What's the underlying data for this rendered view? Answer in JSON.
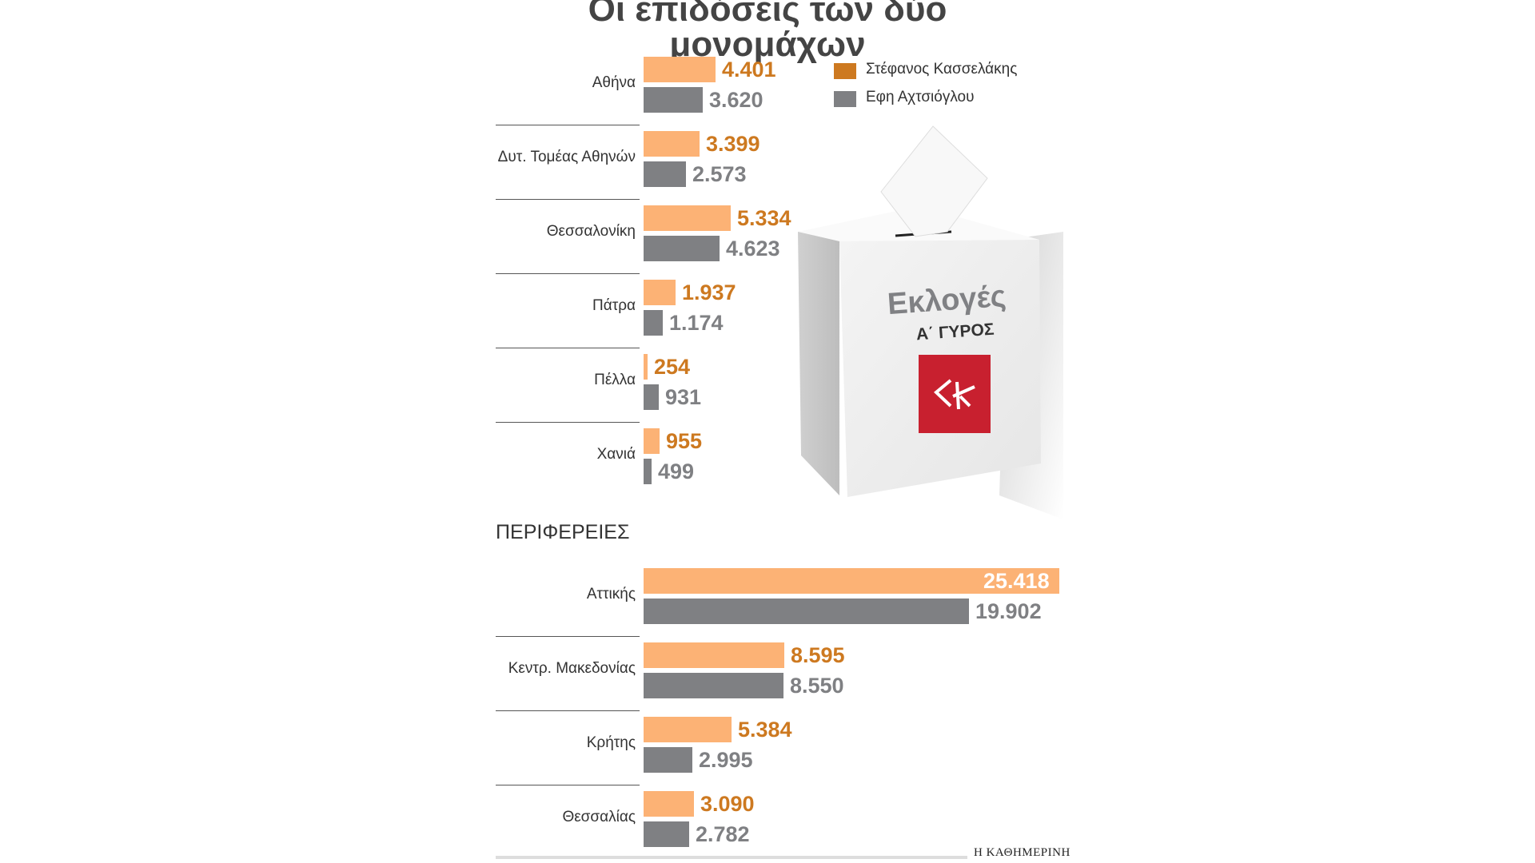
{
  "title": "Οι επιδόσεις των δύο μονομάχων",
  "legend": [
    {
      "name": "Στέφανος Κασσελάκης",
      "color": "#cd7920"
    },
    {
      "name": "Εφη Αχτσιόγλου",
      "color": "#7f8083"
    }
  ],
  "section_label": "ΠΕΡΙΦΕΡΕΙΕΣ",
  "ballot_box": {
    "title": "Εκλογές",
    "subtitle": "Α΄ ΓΥΡΟΣ",
    "logo_icon": "syriza-logo-icon"
  },
  "source": "Η ΚΑΘΗΜΕΡΙΝΗ",
  "chart_data": [
    {
      "type": "bar",
      "orientation": "horizontal",
      "categories": [
        "Αθήνα",
        "Δυτ. Τομέας Αθηνών",
        "Θεσσαλονίκη",
        "Πάτρα",
        "Πέλλα",
        "Χανιά"
      ],
      "series": [
        {
          "name": "Στέφανος Κασσελάκης",
          "values": [
            4401,
            3399,
            5334,
            1937,
            254,
            955
          ],
          "labels": [
            "4.401",
            "3.399",
            "5.334",
            "1.937",
            "254",
            "955"
          ]
        },
        {
          "name": "Εφη Αχτσιόγλου",
          "values": [
            3620,
            2573,
            4623,
            1174,
            931,
            499
          ],
          "labels": [
            "3.620",
            "2.573",
            "4.623",
            "1.174",
            "931",
            "499"
          ]
        }
      ]
    },
    {
      "type": "bar",
      "orientation": "horizontal",
      "title": "ΠΕΡΙΦΕΡΕΙΕΣ",
      "categories": [
        "Αττικής",
        "Κεντρ. Μακεδονίας",
        "Κρήτης",
        "Θεσσαλίας"
      ],
      "series": [
        {
          "name": "Στέφανος Κασσελάκης",
          "values": [
            25418,
            8595,
            5384,
            3090
          ],
          "labels": [
            "25.418",
            "8.595",
            "5.384",
            "3.090"
          ]
        },
        {
          "name": "Εφη Αχτσιόγλου",
          "values": [
            19902,
            8550,
            2995,
            2782
          ],
          "labels": [
            "19.902",
            "8.550",
            "2.995",
            "2.782"
          ]
        }
      ]
    }
  ]
}
